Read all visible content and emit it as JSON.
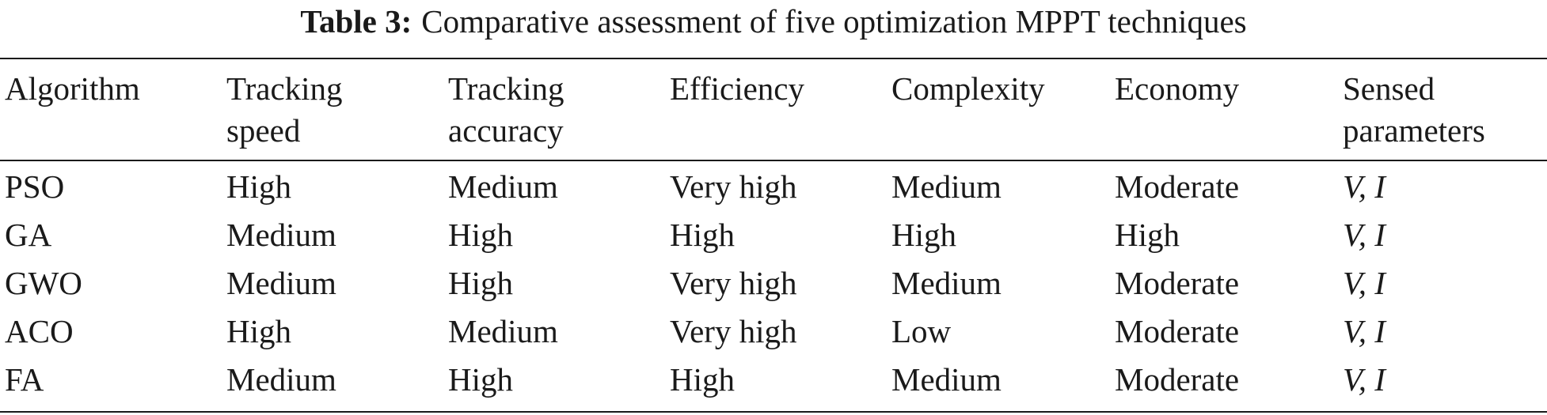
{
  "caption": {
    "label": "Table 3:",
    "text": "Comparative assessment of five optimization MPPT techniques"
  },
  "table": {
    "headers": [
      [
        "Algorithm"
      ],
      [
        "Tracking",
        "speed"
      ],
      [
        "Tracking",
        "accuracy"
      ],
      [
        "Efficiency"
      ],
      [
        "Complexity"
      ],
      [
        "Economy"
      ],
      [
        "Sensed",
        "parameters"
      ]
    ],
    "rows": [
      [
        "PSO",
        "High",
        "Medium",
        "Very high",
        "Medium",
        "Moderate",
        "V, I"
      ],
      [
        "GA",
        "Medium",
        "High",
        "High",
        "High",
        "High",
        "V, I"
      ],
      [
        "GWO",
        "Medium",
        "High",
        "Very high",
        "Medium",
        "Moderate",
        "V, I"
      ],
      [
        "ACO",
        "High",
        "Medium",
        "Very high",
        "Low",
        "Moderate",
        "V, I"
      ],
      [
        "FA",
        "Medium",
        "High",
        "High",
        "Medium",
        "Moderate",
        "V, I"
      ]
    ]
  }
}
